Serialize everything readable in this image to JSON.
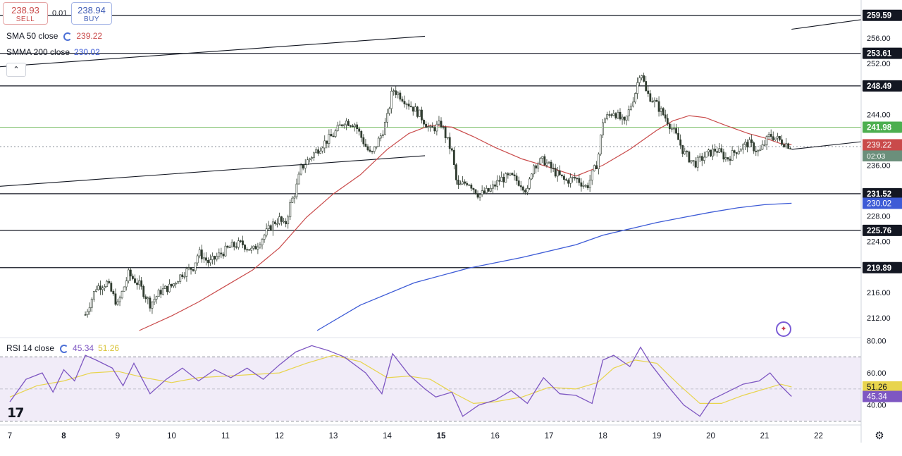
{
  "trade": {
    "sell_price": "238.93",
    "sell_label": "SELL",
    "spread": "0.01",
    "buy_price": "238.94",
    "buy_label": "BUY"
  },
  "legend": {
    "sma_label": "SMA 50 close",
    "sma_value": "239.22",
    "smma_label": "SMMA 200 close",
    "smma_value": "230.02",
    "rsi_label": "RSI 14 close",
    "rsi_value": "45.34",
    "rsi_ma_value": "51.26"
  },
  "colors": {
    "up": "#089981",
    "down": "#f23645",
    "sma50": "#c94a4a",
    "smma200": "#3d5bd6",
    "rsi": "#7e57c2",
    "rsi_ma": "#e8d44d",
    "level_green": "#4caf50",
    "candle": "#2f3b2f"
  },
  "icons": {
    "collapse": "chevron-up-icon",
    "settings": "gear-icon",
    "logo": "tradingview-logo",
    "assist": "sparkle-icon"
  },
  "chart_data": [
    {
      "type": "candlestick",
      "price_axis_ticks": [
        "256.00",
        "252.00",
        "244.00",
        "236.00",
        "228.00",
        "224.00",
        "216.00",
        "212.00"
      ],
      "ylim": [
        209,
        262
      ],
      "x_tick_labels": [
        "7",
        "8",
        "9",
        "10",
        "11",
        "12",
        "13",
        "14",
        "15",
        "16",
        "17",
        "18",
        "19",
        "20",
        "21",
        "22"
      ],
      "horizontal_levels": [
        {
          "label": "259.59",
          "value": 259.59
        },
        {
          "label": "253.61",
          "value": 253.61
        },
        {
          "label": "248.49",
          "value": 248.49
        },
        {
          "label": "241.98",
          "value": 241.98,
          "color": "green"
        },
        {
          "label": "231.52",
          "value": 231.52
        },
        {
          "label": "225.76",
          "value": 225.76
        },
        {
          "label": "219.89",
          "value": 219.89
        }
      ],
      "current_price": {
        "label": "238.94",
        "countdown": "02:03"
      },
      "sma50_label": "239.22",
      "smma200_label": "230.02",
      "trendlines": [
        {
          "from": [
            1.9,
            5.6
          ],
          "to": [
            14.7,
            7.3
          ],
          "note": "upper",
          "y_from": 248.5,
          "y_to": 256.3
        },
        {
          "from": [
            1.1,
            5.6
          ],
          "to": [
            14.7,
            7.3
          ],
          "y_from": 229.2,
          "y_to": 237.5
        }
      ],
      "close_path": [
        [
          8.4,
          212.5
        ],
        [
          8.6,
          216.8
        ],
        [
          8.8,
          217.5
        ],
        [
          9.0,
          214.0
        ],
        [
          9.2,
          218.9
        ],
        [
          9.4,
          217.2
        ],
        [
          9.6,
          214.2
        ],
        [
          9.8,
          216.2
        ],
        [
          10.0,
          217.0
        ],
        [
          10.2,
          219.0
        ],
        [
          10.4,
          220.0
        ],
        [
          10.5,
          222.3
        ],
        [
          10.7,
          220.6
        ],
        [
          10.9,
          222.0
        ],
        [
          11.1,
          223.2
        ],
        [
          11.3,
          223.7
        ],
        [
          11.5,
          222.5
        ],
        [
          11.7,
          224.8
        ],
        [
          11.9,
          227.0
        ],
        [
          12.0,
          227.5
        ],
        [
          12.1,
          226.3
        ],
        [
          12.2,
          229.8
        ],
        [
          12.3,
          232.0
        ],
        [
          12.4,
          235.5
        ],
        [
          12.6,
          237.5
        ],
        [
          12.8,
          239.3
        ],
        [
          13.0,
          240.8
        ],
        [
          13.2,
          243.0
        ],
        [
          13.4,
          242.5
        ],
        [
          13.6,
          239.0
        ],
        [
          13.7,
          237.5
        ],
        [
          13.9,
          241.0
        ],
        [
          14.0,
          243.5
        ],
        [
          14.1,
          248.0
        ],
        [
          14.3,
          246.5
        ],
        [
          14.6,
          244.0
        ],
        [
          14.8,
          241.5
        ],
        [
          15.0,
          242.5
        ],
        [
          15.1,
          240.2
        ],
        [
          15.2,
          238.0
        ],
        [
          15.3,
          232.5
        ],
        [
          15.5,
          233.5
        ],
        [
          15.7,
          231.3
        ],
        [
          15.9,
          232.0
        ],
        [
          16.1,
          233.8
        ],
        [
          16.3,
          234.2
        ],
        [
          16.5,
          233.0
        ],
        [
          16.6,
          231.8
        ],
        [
          16.7,
          236.0
        ],
        [
          16.9,
          236.8
        ],
        [
          17.1,
          235.0
        ],
        [
          17.3,
          233.5
        ],
        [
          17.5,
          234.0
        ],
        [
          17.7,
          232.5
        ],
        [
          17.9,
          236.5
        ],
        [
          18.0,
          243.0
        ],
        [
          18.2,
          244.5
        ],
        [
          18.4,
          242.5
        ],
        [
          18.6,
          247.5
        ],
        [
          18.7,
          251.2
        ],
        [
          18.8,
          247.5
        ],
        [
          19.0,
          245.5
        ],
        [
          19.2,
          243.0
        ],
        [
          19.4,
          240.0
        ],
        [
          19.5,
          238.0
        ],
        [
          19.7,
          236.2
        ],
        [
          19.9,
          237.5
        ],
        [
          20.1,
          238.5
        ],
        [
          20.3,
          237.0
        ],
        [
          20.5,
          238.5
        ],
        [
          20.7,
          239.5
        ],
        [
          20.9,
          238.0
        ],
        [
          21.1,
          240.8
        ],
        [
          21.3,
          239.8
        ],
        [
          21.5,
          238.94
        ]
      ],
      "sma50_path": [
        [
          9.4,
          210.0
        ],
        [
          10.0,
          212.3
        ],
        [
          10.5,
          214.5
        ],
        [
          11.0,
          217.0
        ],
        [
          11.5,
          219.5
        ],
        [
          12.0,
          223.0
        ],
        [
          12.5,
          227.8
        ],
        [
          13.0,
          231.5
        ],
        [
          13.5,
          234.5
        ],
        [
          14.0,
          238.5
        ],
        [
          14.4,
          241.0
        ],
        [
          14.8,
          242.3
        ],
        [
          15.2,
          242.0
        ],
        [
          15.6,
          240.5
        ],
        [
          16.0,
          238.8
        ],
        [
          16.5,
          237.0
        ],
        [
          17.0,
          235.7
        ],
        [
          17.5,
          234.3
        ],
        [
          18.0,
          236.0
        ],
        [
          18.5,
          238.5
        ],
        [
          19.0,
          241.5
        ],
        [
          19.3,
          243.0
        ],
        [
          19.6,
          243.8
        ],
        [
          19.9,
          243.5
        ],
        [
          20.3,
          242.2
        ],
        [
          20.7,
          241.0
        ],
        [
          21.0,
          240.3
        ],
        [
          21.3,
          239.4
        ],
        [
          21.5,
          239.22
        ]
      ],
      "smma200_path": [
        [
          12.7,
          210.0
        ],
        [
          13.5,
          214.0
        ],
        [
          14.5,
          217.5
        ],
        [
          15.5,
          219.8
        ],
        [
          16.5,
          221.5
        ],
        [
          17.5,
          223.5
        ],
        [
          18.0,
          225.0
        ],
        [
          18.5,
          226.0
        ],
        [
          19.0,
          227.0
        ],
        [
          19.5,
          227.8
        ],
        [
          20.0,
          228.6
        ],
        [
          20.5,
          229.3
        ],
        [
          21.0,
          229.8
        ],
        [
          21.5,
          230.02
        ]
      ]
    },
    {
      "type": "line",
      "title": "RSI 14 close",
      "axis_ticks": [
        "80.00",
        "60.00",
        "40.00"
      ],
      "ylim": [
        28,
        82
      ],
      "bands": [
        70,
        30
      ],
      "midline": 50,
      "current_labels": {
        "rsi_ma": "51.26",
        "rsi": "45.34"
      },
      "rsi_path": [
        [
          7.0,
          42
        ],
        [
          7.3,
          56
        ],
        [
          7.6,
          60
        ],
        [
          7.8,
          48
        ],
        [
          8.0,
          62
        ],
        [
          8.2,
          55
        ],
        [
          8.4,
          71
        ],
        [
          8.6,
          68
        ],
        [
          8.9,
          63
        ],
        [
          9.1,
          52
        ],
        [
          9.3,
          66
        ],
        [
          9.6,
          47
        ],
        [
          9.9,
          56
        ],
        [
          10.2,
          63
        ],
        [
          10.5,
          55
        ],
        [
          10.8,
          62
        ],
        [
          11.1,
          57
        ],
        [
          11.4,
          63
        ],
        [
          11.7,
          56
        ],
        [
          12.0,
          65
        ],
        [
          12.3,
          73
        ],
        [
          12.6,
          77
        ],
        [
          12.9,
          74
        ],
        [
          13.2,
          70
        ],
        [
          13.6,
          60
        ],
        [
          13.9,
          47
        ],
        [
          14.1,
          72
        ],
        [
          14.4,
          59
        ],
        [
          14.7,
          50
        ],
        [
          14.9,
          45
        ],
        [
          15.2,
          48
        ],
        [
          15.4,
          33
        ],
        [
          15.7,
          40
        ],
        [
          16.0,
          43
        ],
        [
          16.3,
          49
        ],
        [
          16.6,
          41
        ],
        [
          16.9,
          57
        ],
        [
          17.2,
          47
        ],
        [
          17.5,
          46
        ],
        [
          17.8,
          41
        ],
        [
          18.0,
          68
        ],
        [
          18.2,
          71
        ],
        [
          18.5,
          64
        ],
        [
          18.7,
          76
        ],
        [
          18.9,
          65
        ],
        [
          19.2,
          52
        ],
        [
          19.5,
          40
        ],
        [
          19.8,
          33
        ],
        [
          20.0,
          43
        ],
        [
          20.3,
          48
        ],
        [
          20.6,
          53
        ],
        [
          20.9,
          55
        ],
        [
          21.1,
          60
        ],
        [
          21.3,
          52
        ],
        [
          21.5,
          45.34
        ]
      ],
      "rsi_ma_path": [
        [
          7.0,
          45
        ],
        [
          7.5,
          52
        ],
        [
          8.0,
          55
        ],
        [
          8.5,
          60
        ],
        [
          9.0,
          61
        ],
        [
          9.5,
          57
        ],
        [
          10.0,
          54
        ],
        [
          10.5,
          57
        ],
        [
          11.0,
          58
        ],
        [
          11.5,
          59
        ],
        [
          12.0,
          60
        ],
        [
          12.5,
          66
        ],
        [
          13.0,
          71
        ],
        [
          13.5,
          67
        ],
        [
          14.0,
          57
        ],
        [
          14.4,
          58
        ],
        [
          14.8,
          56
        ],
        [
          15.2,
          48
        ],
        [
          15.6,
          41
        ],
        [
          16.0,
          42
        ],
        [
          16.5,
          45
        ],
        [
          17.0,
          51
        ],
        [
          17.5,
          50
        ],
        [
          17.9,
          54
        ],
        [
          18.2,
          63
        ],
        [
          18.6,
          68
        ],
        [
          19.0,
          66
        ],
        [
          19.4,
          53
        ],
        [
          19.8,
          41
        ],
        [
          20.2,
          41
        ],
        [
          20.6,
          46
        ],
        [
          21.0,
          50
        ],
        [
          21.3,
          53
        ],
        [
          21.5,
          51.26
        ]
      ]
    }
  ]
}
